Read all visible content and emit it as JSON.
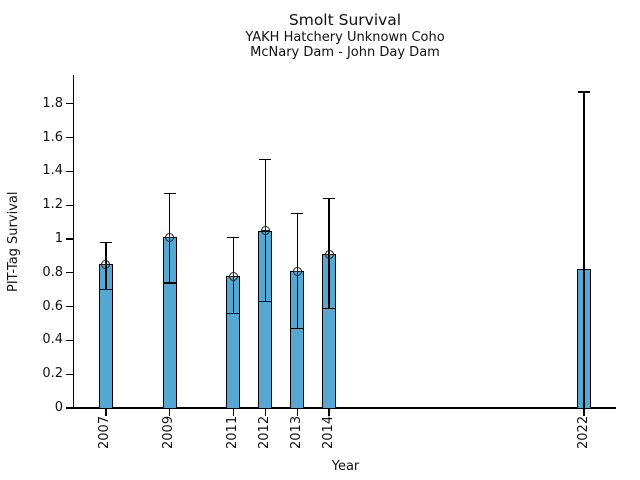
{
  "chart_data": {
    "type": "bar",
    "title": "Smolt Survival",
    "subtitle1": "YAKH Hatchery Unknown Coho",
    "subtitle2": "McNary Dam - John Day Dam",
    "xlabel": "Year",
    "ylabel": "PIT-Tag Survival",
    "legend": "none",
    "grid": "off",
    "bar_color": "#56a8d2",
    "bar_edge_color": "#000000",
    "error_color": "#000000",
    "marker_style": "open-circle-with-cross",
    "xlim": [
      2006,
      2023
    ],
    "ylim": [
      0,
      1.97
    ],
    "yticks": [
      {
        "value": 0,
        "label": "0"
      },
      {
        "value": 0.2,
        "label": "0.2"
      },
      {
        "value": 0.4,
        "label": "0.4"
      },
      {
        "value": 0.6,
        "label": "0.6"
      },
      {
        "value": 0.8,
        "label": "0.8"
      },
      {
        "value": 1,
        "label": "1"
      },
      {
        "value": 1.2,
        "label": "1.2"
      },
      {
        "value": 1.4,
        "label": "1.4"
      },
      {
        "value": 1.6,
        "label": "1.6"
      },
      {
        "value": 1.8,
        "label": "1.8"
      }
    ],
    "points": [
      {
        "year": 2007,
        "label": "2007",
        "value": 0.85,
        "err_hi": 0.98,
        "err_lo": 0.7,
        "cap_hi": true,
        "cap_lo": true,
        "marker": true
      },
      {
        "year": 2009,
        "label": "2009",
        "value": 1.01,
        "err_hi": 1.27,
        "err_lo": 0.74,
        "cap_hi": true,
        "cap_lo": true,
        "marker": true
      },
      {
        "year": 2011,
        "label": "2011",
        "value": 0.78,
        "err_hi": 1.01,
        "err_lo": 0.56,
        "cap_hi": true,
        "cap_lo": true,
        "marker": true
      },
      {
        "year": 2012,
        "label": "2012",
        "value": 1.05,
        "err_hi": 1.47,
        "err_lo": 0.63,
        "cap_hi": true,
        "cap_lo": true,
        "marker": true
      },
      {
        "year": 2013,
        "label": "2013",
        "value": 0.81,
        "err_hi": 1.15,
        "err_lo": 0.47,
        "cap_hi": true,
        "cap_lo": true,
        "marker": true
      },
      {
        "year": 2014,
        "label": "2014",
        "value": 0.91,
        "err_hi": 1.24,
        "err_lo": 0.59,
        "cap_hi": true,
        "cap_lo": true,
        "marker": true
      },
      {
        "year": 2022,
        "label": "2022",
        "value": 0.82,
        "err_hi": 1.87,
        "err_lo": 0.0,
        "cap_hi": true,
        "cap_lo": false,
        "marker": false
      }
    ]
  }
}
